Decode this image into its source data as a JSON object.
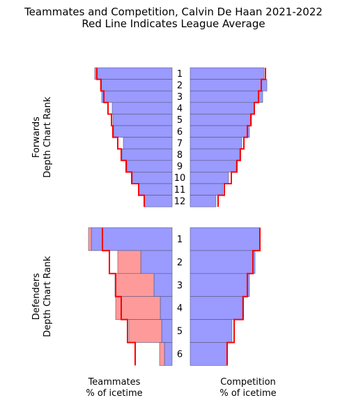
{
  "title": "Teammates and Competition, Calvin De Haan 2021-2022",
  "subtitle": "Red Line Indicates League Average",
  "colors": {
    "bar_blue": "#9a9aff",
    "bar_red": "#ff9a9a",
    "bar_edge": "#555577",
    "league_line": "#ff0000"
  },
  "chart_data": [
    {
      "type": "bar",
      "name": "forwards-teammates",
      "ylabel": "Forwards\nDepth Chart Rank",
      "xlabel": "",
      "categories": [
        "1",
        "2",
        "3",
        "4",
        "5",
        "6",
        "7",
        "8",
        "9",
        "10",
        "11",
        "12"
      ],
      "series": [
        {
          "values": [
            111,
            103,
            101,
            86,
            85,
            84,
            70,
            72,
            65,
            57,
            48,
            40
          ]
        },
        {
          "values": [
            0,
            0,
            0,
            0,
            0,
            0,
            0,
            0,
            0,
            0,
            0,
            0
          ]
        }
      ],
      "league_average": [
        108,
        102,
        98,
        92,
        87,
        85,
        78,
        73,
        66,
        58,
        48,
        40
      ]
    },
    {
      "type": "bar",
      "name": "forwards-competition",
      "categories": [
        "1",
        "2",
        "3",
        "4",
        "5",
        "6",
        "7",
        "8",
        "9",
        "10",
        "11",
        "12"
      ],
      "series": [
        {
          "values": [
            106,
            110,
            104,
            92,
            88,
            85,
            74,
            71,
            66,
            55,
            47,
            37
          ]
        }
      ],
      "league_average": [
        108,
        102,
        98,
        92,
        87,
        82,
        77,
        72,
        67,
        59,
        49,
        40
      ]
    },
    {
      "type": "bar",
      "name": "defenders-teammates",
      "ylabel": "Defenders\nDepth Chart Rank",
      "xlabel": "Teammates\n% of icetime",
      "categories": [
        "1",
        "2",
        "3",
        "4",
        "5",
        "6"
      ],
      "series": [
        {
          "values": [
            116,
            45,
            26,
            17,
            15,
            11
          ]
        },
        {
          "values": [
            4,
            33,
            56,
            64,
            47,
            7
          ]
        }
      ],
      "league_average": [
        100,
        90,
        81,
        73,
        64,
        53
      ]
    },
    {
      "type": "bar",
      "name": "defenders-competition",
      "xlabel": "Competition\n% of icetime",
      "categories": [
        "1",
        "2",
        "3",
        "4",
        "5",
        "6"
      ],
      "series": [
        {
          "values": [
            100,
            93,
            85,
            75,
            60,
            53
          ]
        }
      ],
      "league_average": [
        100,
        90,
        82,
        76,
        63,
        53
      ]
    }
  ]
}
